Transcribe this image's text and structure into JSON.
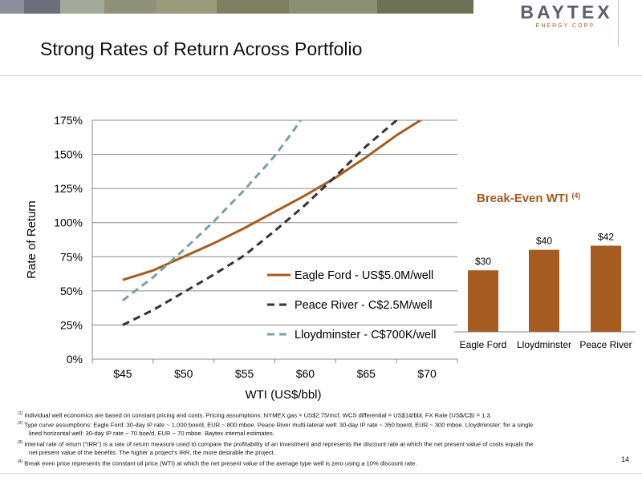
{
  "header": {
    "logo_name": "BAYTEX",
    "logo_subtitle": "ENERGY CORP.",
    "bar_colors": [
      "#8a8f99",
      "#6b707a",
      "#a4a89a",
      "#8f9179",
      "#9b9a7a",
      "#7e8061",
      "#8d8f73",
      "#6f7156"
    ]
  },
  "slide": {
    "title": "Strong Rates of Return Across Portfolio",
    "page_number": "14"
  },
  "chart_data": [
    {
      "type": "line",
      "title": "",
      "xlabel": "WTI (US$/bbl)",
      "ylabel": "Rate of Return",
      "x_ticks": [
        "$45",
        "$50",
        "$55",
        "$60",
        "$65",
        "$70"
      ],
      "y_ticks": [
        "0%",
        "25%",
        "50%",
        "75%",
        "100%",
        "125%",
        "150%",
        "175%"
      ],
      "xlim": [
        42.5,
        72.5
      ],
      "ylim": [
        0,
        175
      ],
      "grid": "horizontal",
      "legend_position": "inside-bottom-right",
      "series": [
        {
          "name": "Eagle Ford - US$5.0M/well",
          "color": "#a65c20",
          "dash": "solid",
          "x": [
            45,
            47.5,
            50,
            52.5,
            55,
            57.5,
            60,
            62.5,
            65,
            67.5,
            70,
            71.5
          ],
          "y": [
            58,
            65,
            75,
            85,
            96,
            108,
            120,
            133,
            148,
            164,
            178,
            185
          ]
        },
        {
          "name": "Peace River - C$2.5M/well",
          "color": "#333333",
          "dash": "dash",
          "x": [
            45,
            47.5,
            50,
            52.5,
            55,
            57.5,
            60,
            62.5,
            65,
            67.5,
            69
          ],
          "y": [
            25,
            36,
            49,
            62,
            76,
            94,
            113,
            134,
            156,
            175,
            190
          ]
        },
        {
          "name": "Lloydminster - C$700K/well",
          "color": "#77a0a8",
          "dash": "dash",
          "x": [
            45,
            47.5,
            50,
            52.5,
            55,
            57.5,
            59,
            60
          ],
          "y": [
            43,
            60,
            80,
            101,
            124,
            149,
            167,
            180
          ]
        }
      ]
    },
    {
      "type": "bar",
      "title": "Break-Even WTI",
      "title_note": "(4)",
      "categories": [
        "Eagle Ford",
        "Lloydminster",
        "Peace River"
      ],
      "values": [
        30,
        40,
        42
      ],
      "labels": [
        "$30",
        "$40",
        "$42"
      ],
      "ylim": [
        0,
        50
      ],
      "color": "#a65c20",
      "title_color": "#a65c20"
    }
  ],
  "footnotes": [
    {
      "mark": "(1)",
      "text": "Individual well economics are based on constant pricing and costs. Pricing assumptions: NYMEX gas = US$2.75/mcf, WCS differential = US$14/bbl, FX Rate (US$/C$) = 1.3."
    },
    {
      "mark": "(2)",
      "text": "Type curve assumptions: Eagle Ford: 30-day IP rate ~ 1,000 boe/d, EUR ~ 800 mboe. Peace River multi-lateral well: 30-day IP rate ~ 350 boe/d, EUR ~ 300 mboe. Lloydminster: for a single",
      "cont": "lined horizontal well: 30-day IP rate ~ 70 boe/d, EUR ~ 70 mboe. Baytex internal estimates."
    },
    {
      "mark": "(3)",
      "text": "Internal rate of return (“IRR”) is a rate of return measure used to compare the profitability of an investment and represents the discount rate at which the net present value of costs equals the",
      "cont": "net present value of the benefits. The higher a project’s IRR, the more desirable the project."
    },
    {
      "mark": "(4)",
      "text": "Break even price represents the constant oil price (WTI) at which the net present value of the average type well is zero using a 10% discount rate."
    }
  ]
}
